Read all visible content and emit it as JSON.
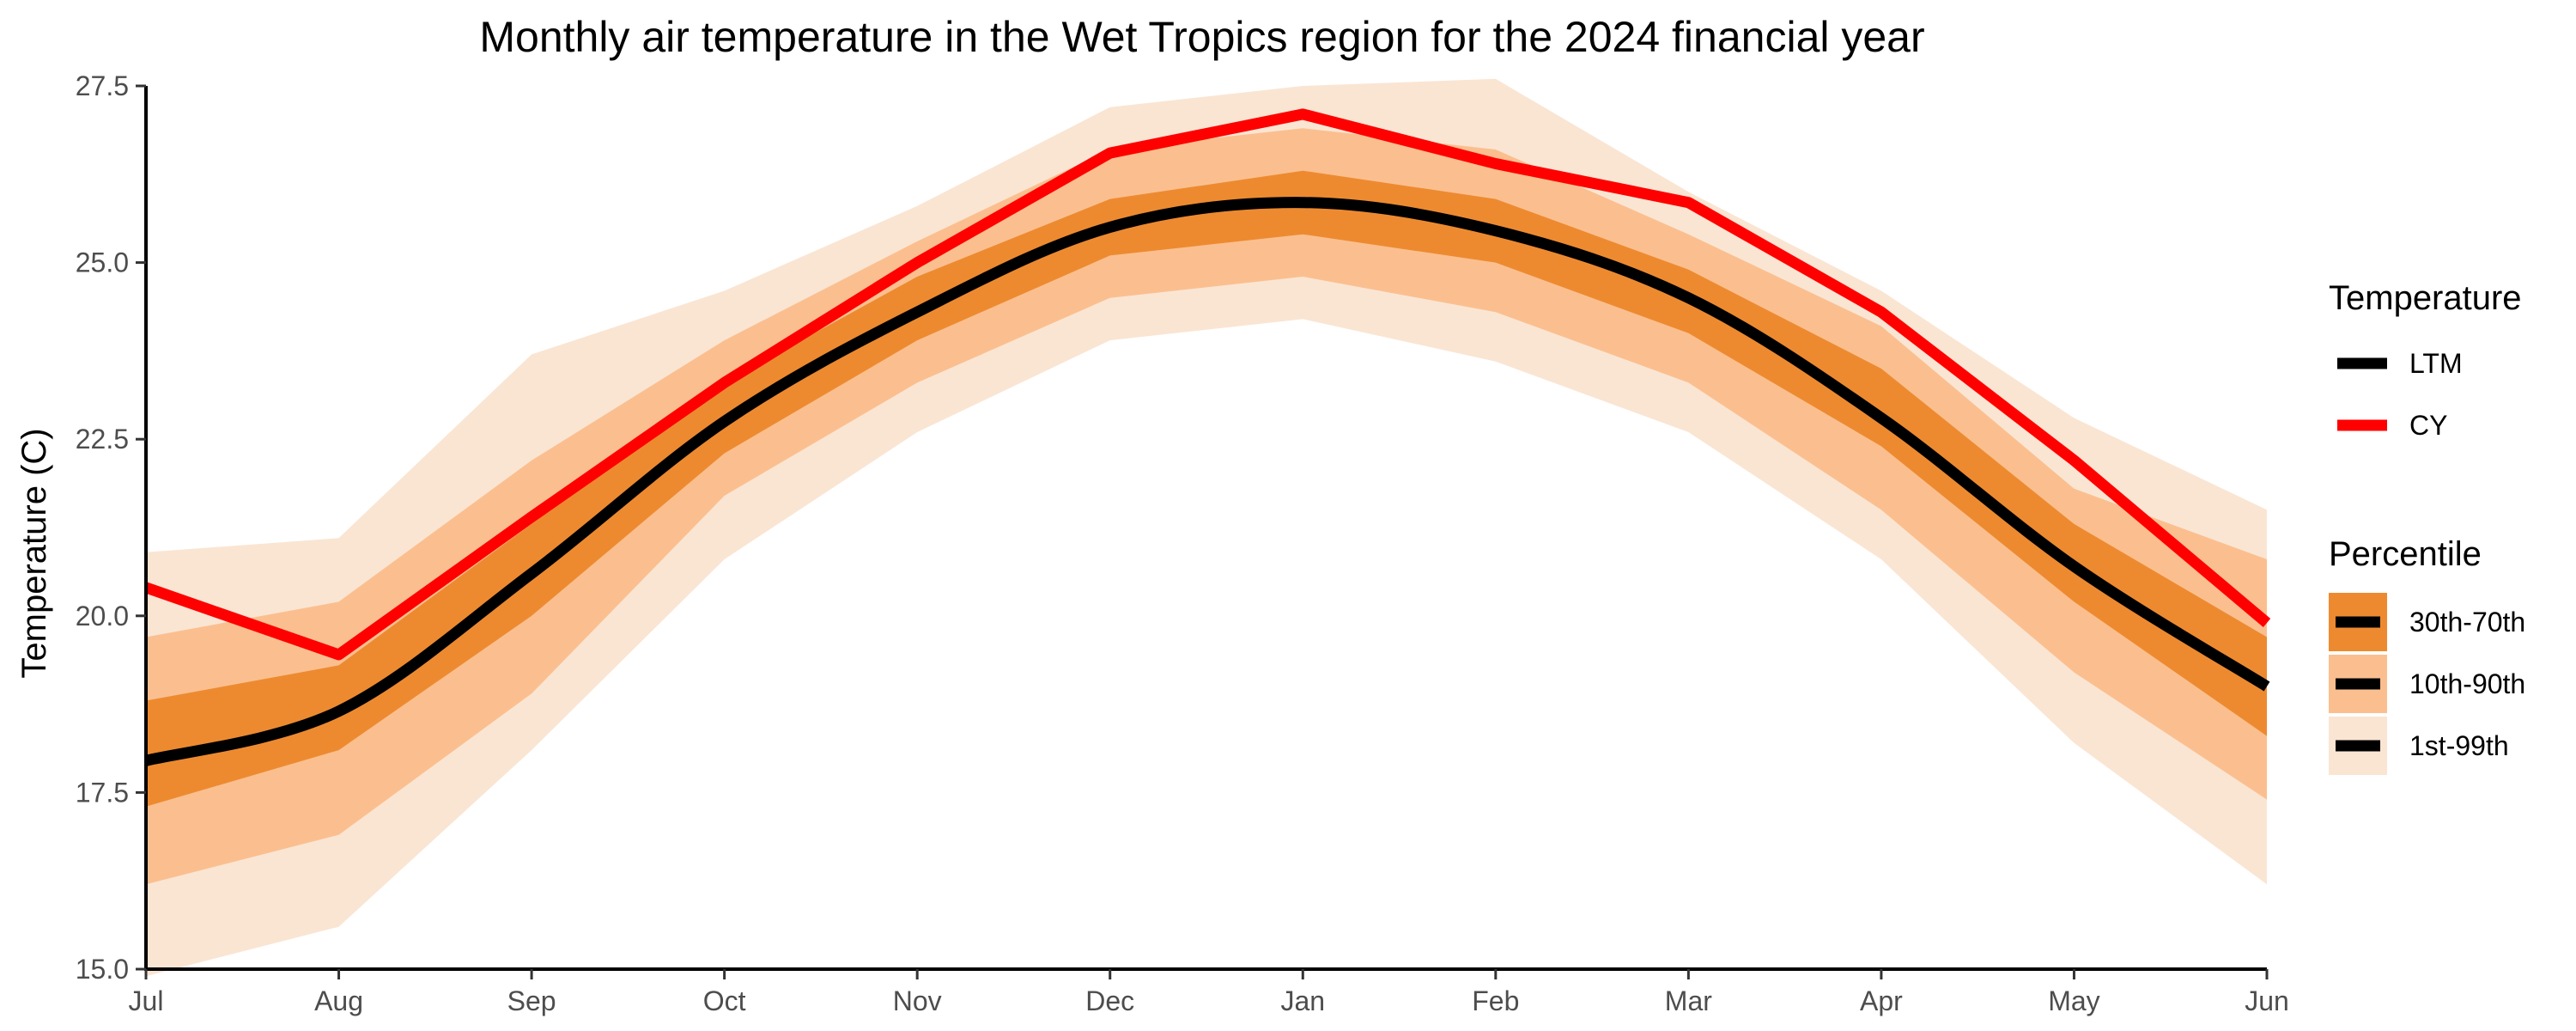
{
  "chart_data": {
    "type": "line",
    "title": "Monthly air temperature in the Wet Tropics region for the 2024 financial year",
    "xlabel": "",
    "ylabel": "Temperature (C)",
    "ylim": [
      15.0,
      27.5
    ],
    "y_ticks": [
      "15.0",
      "17.5",
      "20.0",
      "22.5",
      "25.0",
      "27.5"
    ],
    "y_tick_values": [
      15.0,
      17.5,
      20.0,
      22.5,
      25.0,
      27.5
    ],
    "categories": [
      "Jul",
      "Aug",
      "Sep",
      "Oct",
      "Nov",
      "Dec",
      "Jan",
      "Feb",
      "Mar",
      "Apr",
      "May",
      "Jun"
    ],
    "grid": false,
    "legend_position": "right",
    "series": [
      {
        "name": "LTM",
        "color": "#000000",
        "values": [
          17.95,
          18.65,
          20.6,
          22.75,
          24.3,
          25.5,
          25.85,
          25.45,
          24.5,
          22.8,
          20.7,
          19.0
        ]
      },
      {
        "name": "CY",
        "color": "#ff0000",
        "values": [
          20.4,
          19.45,
          21.4,
          23.3,
          25.0,
          26.55,
          27.1,
          26.4,
          25.85,
          24.3,
          22.2,
          19.9
        ]
      }
    ],
    "bands": [
      {
        "name": "1st-99th",
        "color": "#fae5d3",
        "low": [
          14.9,
          15.6,
          18.1,
          20.8,
          22.6,
          23.9,
          24.2,
          23.6,
          22.6,
          20.8,
          18.2,
          16.2
        ],
        "high": [
          20.9,
          21.1,
          23.7,
          24.6,
          25.8,
          27.2,
          27.5,
          27.6,
          26.0,
          24.6,
          22.8,
          21.5
        ]
      },
      {
        "name": "10th-90th",
        "color": "#fbbf8f",
        "low": [
          16.2,
          16.9,
          18.9,
          21.7,
          23.3,
          24.5,
          24.8,
          24.3,
          23.3,
          21.5,
          19.2,
          17.4
        ],
        "high": [
          19.7,
          20.2,
          22.2,
          23.9,
          25.3,
          26.6,
          26.9,
          26.6,
          25.4,
          24.1,
          21.8,
          20.8
        ]
      },
      {
        "name": "30th-70th",
        "color": "#ed8a30",
        "low": [
          17.3,
          18.1,
          20.0,
          22.3,
          23.9,
          25.1,
          25.4,
          25.0,
          24.0,
          22.4,
          20.2,
          18.3
        ],
        "high": [
          18.8,
          19.3,
          21.3,
          23.3,
          24.8,
          25.9,
          26.3,
          25.9,
          24.9,
          23.5,
          21.3,
          19.7
        ]
      }
    ],
    "legend": {
      "temperature_title": "Temperature",
      "temperature_items": [
        {
          "label": "LTM",
          "color": "#000000"
        },
        {
          "label": "CY",
          "color": "#ff0000"
        }
      ],
      "percentile_title": "Percentile",
      "percentile_items": [
        {
          "label": "30th-70th",
          "color": "#ed8a30"
        },
        {
          "label": "10th-90th",
          "color": "#fbbf8f"
        },
        {
          "label": "1st-99th",
          "color": "#fae5d3"
        }
      ]
    }
  }
}
